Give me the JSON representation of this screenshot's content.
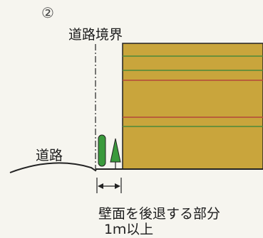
{
  "figure": {
    "number": "②",
    "road_boundary_label": "道路境界",
    "road_label": "道路",
    "setback_label": "壁面を後退する部分",
    "setback_distance": "1ｍ以上"
  },
  "colors": {
    "building_fill": "#c9a53c",
    "building_outline": "#222222",
    "line_red": "#b4473a",
    "line_green": "#4a8a3a",
    "tree_green": "#3a9a3c",
    "ground": "#222222"
  }
}
